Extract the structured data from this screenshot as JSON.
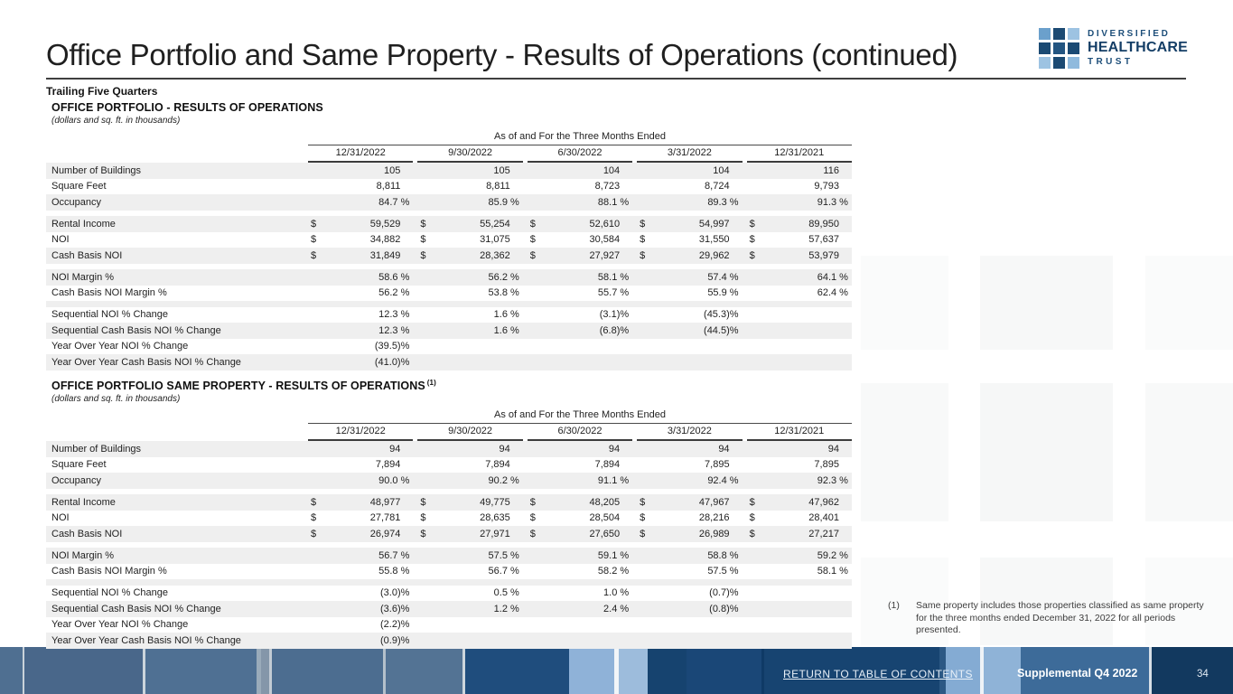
{
  "title": "Office Portfolio and Same Property - Results of Operations (continued)",
  "page_label": "Trailing Five Quarters",
  "logo": {
    "line1": "DIVERSIFIED",
    "line2": "HEALTHCARE",
    "line3": "TRUST",
    "grid_colors": [
      "#6ba0cc",
      "#1b4a73",
      "#9dc3e2",
      "#1b4a73",
      "#235581",
      "#1b4a73",
      "#9dc3e2",
      "#1b4a73",
      "#8fbadd"
    ]
  },
  "colors": {
    "brand_navy": "#1b4a73",
    "brand_light_blue": "#9dc3e2",
    "row_stripe": "#efefef",
    "rule_dark": "#3f3f3f",
    "footer_navy": "#174471",
    "footer_steel": "#4f7093"
  },
  "tables": [
    {
      "heading": "OFFICE PORTFOLIO -  RESULTS OF OPERATIONS",
      "heading_sup": "",
      "subnote": "(dollars and sq. ft. in thousands)",
      "col_header": "As of and For the Three Months Ended",
      "columns": [
        "12/31/2022",
        "9/30/2022",
        "6/30/2022",
        "3/31/2022",
        "12/31/2021"
      ],
      "rows": [
        {
          "label": "Number of Buildings",
          "dollar": false,
          "shade": "g",
          "values": [
            "105",
            "105",
            "104",
            "104",
            "116"
          ]
        },
        {
          "label": "Square Feet",
          "dollar": false,
          "shade": "w",
          "values": [
            "8,811",
            "8,811",
            "8,723",
            "8,724",
            "9,793"
          ]
        },
        {
          "label": "Occupancy",
          "dollar": false,
          "shade": "g",
          "values": [
            "84.7 %",
            "85.9 %",
            "88.1 %",
            "89.3 %",
            "91.3 %"
          ]
        },
        {
          "gap": true,
          "shade": "w"
        },
        {
          "label": "Rental Income",
          "dollar": true,
          "shade": "g",
          "values": [
            "59,529",
            "55,254",
            "52,610",
            "54,997",
            "89,950"
          ]
        },
        {
          "label": "NOI",
          "dollar": true,
          "shade": "w",
          "values": [
            "34,882",
            "31,075",
            "30,584",
            "31,550",
            "57,637"
          ]
        },
        {
          "label": "Cash Basis NOI",
          "dollar": true,
          "shade": "g",
          "values": [
            "31,849",
            "28,362",
            "27,927",
            "29,962",
            "53,979"
          ]
        },
        {
          "gap": true,
          "shade": "w"
        },
        {
          "label": "NOI Margin %",
          "dollar": false,
          "shade": "g",
          "values": [
            "58.6 %",
            "56.2 %",
            "58.1 %",
            "57.4 %",
            "64.1 %"
          ]
        },
        {
          "label": "Cash Basis NOI Margin %",
          "dollar": false,
          "shade": "w",
          "values": [
            "56.2 %",
            "53.8 %",
            "55.7 %",
            "55.9 %",
            "62.4 %"
          ]
        },
        {
          "gap": true,
          "shade": "g"
        },
        {
          "label": "Sequential NOI % Change",
          "dollar": false,
          "shade": "w",
          "values": [
            "12.3 %",
            "1.6 %",
            "(3.1)%",
            "(45.3)%",
            ""
          ]
        },
        {
          "label": "Sequential Cash Basis NOI % Change",
          "dollar": false,
          "shade": "g",
          "values": [
            "12.3 %",
            "1.6 %",
            "(6.8)%",
            "(44.5)%",
            ""
          ]
        },
        {
          "label": "Year Over Year NOI % Change",
          "dollar": false,
          "shade": "w",
          "values": [
            "(39.5)%",
            "",
            "",
            "",
            ""
          ]
        },
        {
          "label": "Year Over Year Cash Basis NOI % Change",
          "dollar": false,
          "shade": "g",
          "values": [
            "(41.0)%",
            "",
            "",
            "",
            ""
          ]
        }
      ]
    },
    {
      "heading": "OFFICE PORTFOLIO SAME PROPERTY - RESULTS OF OPERATIONS",
      "heading_sup": "(1)",
      "subnote": "(dollars and sq. ft. in thousands)",
      "col_header": "As of and For the Three Months Ended",
      "columns": [
        "12/31/2022",
        "9/30/2022",
        "6/30/2022",
        "3/31/2022",
        "12/31/2021"
      ],
      "rows": [
        {
          "label": "Number of Buildings",
          "dollar": false,
          "shade": "g",
          "values": [
            "94",
            "94",
            "94",
            "94",
            "94"
          ]
        },
        {
          "label": "Square Feet",
          "dollar": false,
          "shade": "w",
          "values": [
            "7,894",
            "7,894",
            "7,894",
            "7,895",
            "7,895"
          ]
        },
        {
          "label": "Occupancy",
          "dollar": false,
          "shade": "g",
          "values": [
            "90.0 %",
            "90.2 %",
            "91.1 %",
            "92.4 %",
            "92.3 %"
          ]
        },
        {
          "gap": true,
          "shade": "w"
        },
        {
          "label": "Rental Income",
          "dollar": true,
          "shade": "g",
          "values": [
            "48,977",
            "49,775",
            "48,205",
            "47,967",
            "47,962"
          ]
        },
        {
          "label": "NOI",
          "dollar": true,
          "shade": "w",
          "values": [
            "27,781",
            "28,635",
            "28,504",
            "28,216",
            "28,401"
          ]
        },
        {
          "label": "Cash Basis NOI",
          "dollar": true,
          "shade": "g",
          "values": [
            "26,974",
            "27,971",
            "27,650",
            "26,989",
            "27,217"
          ]
        },
        {
          "gap": true,
          "shade": "w"
        },
        {
          "label": "NOI Margin %",
          "dollar": false,
          "shade": "g",
          "values": [
            "56.7 %",
            "57.5 %",
            "59.1 %",
            "58.8 %",
            "59.2 %"
          ]
        },
        {
          "label": "Cash Basis NOI Margin %",
          "dollar": false,
          "shade": "w",
          "values": [
            "55.8 %",
            "56.7 %",
            "58.2 %",
            "57.5 %",
            "58.1 %"
          ]
        },
        {
          "gap": true,
          "shade": "g"
        },
        {
          "label": "Sequential NOI % Change",
          "dollar": false,
          "shade": "w",
          "values": [
            "(3.0)%",
            "0.5 %",
            "1.0 %",
            "(0.7)%",
            ""
          ]
        },
        {
          "label": "Sequential Cash Basis NOI % Change",
          "dollar": false,
          "shade": "g",
          "values": [
            "(3.6)%",
            "1.2 %",
            "2.4 %",
            "(0.8)%",
            ""
          ]
        },
        {
          "label": "Year Over Year NOI % Change",
          "dollar": false,
          "shade": "w",
          "values": [
            "(2.2)%",
            "",
            "",
            "",
            ""
          ]
        },
        {
          "label": "Year Over Year Cash Basis NOI % Change",
          "dollar": false,
          "shade": "g",
          "values": [
            "(0.9)%",
            "",
            "",
            "",
            ""
          ]
        }
      ]
    }
  ],
  "footnote": {
    "marker": "(1)",
    "text": "Same property includes those properties classified as same property for the three months ended December 31, 2022 for all periods presented."
  },
  "footer": {
    "link": "RETURN TO TABLE OF CONTENTS",
    "doc": "Supplemental Q4 2022",
    "page": "34"
  }
}
